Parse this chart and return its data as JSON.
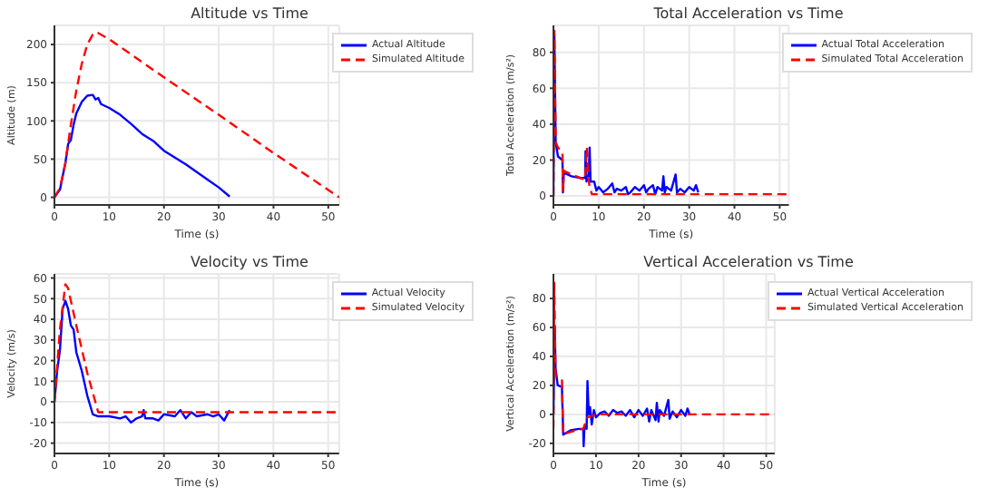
{
  "chart_data": [
    {
      "type": "line",
      "title": "Altitude vs Time",
      "xlabel": "Time (s)",
      "ylabel": "Altitude (m)",
      "xlim": [
        0,
        52
      ],
      "xticks": [
        0,
        10,
        20,
        30,
        40,
        50
      ],
      "ylim": [
        -10,
        225
      ],
      "yticks": [
        0,
        50,
        100,
        150,
        200
      ],
      "grid": true,
      "legend": "top right",
      "series": [
        {
          "name": "Actual Altitude",
          "color": "#0000ff",
          "line_style": "solid",
          "x": [
            0,
            1,
            2,
            2.5,
            3,
            3.5,
            4,
            5,
            6,
            7,
            7.5,
            8,
            8.5,
            10,
            12,
            14,
            16,
            18,
            20,
            22,
            24,
            26,
            28,
            30,
            32
          ],
          "values": [
            0,
            10,
            45,
            70,
            75,
            95,
            110,
            125,
            133,
            134,
            128,
            130,
            122,
            117,
            108,
            96,
            83,
            74,
            61,
            52,
            43,
            33,
            23,
            13,
            1
          ]
        },
        {
          "name": "Simulated Altitude",
          "color": "#ff0000",
          "line_style": "dashed",
          "x": [
            0,
            1,
            2,
            3,
            4,
            5,
            6,
            7,
            7.5,
            8,
            10,
            20,
            30,
            40,
            52
          ],
          "values": [
            0,
            12,
            45,
            95,
            140,
            175,
            200,
            213,
            216,
            215,
            207,
            157,
            108,
            58,
            0
          ]
        }
      ]
    },
    {
      "type": "line",
      "title": "Total Acceleration vs Time",
      "xlabel": "Time (s)",
      "ylabel": "Total Acceleration (m/s²)",
      "xlim": [
        0,
        52
      ],
      "xticks": [
        0,
        10,
        20,
        30,
        40,
        50
      ],
      "ylim": [
        -5,
        95
      ],
      "yticks": [
        0,
        20,
        40,
        60,
        80
      ],
      "grid": true,
      "legend": "top right",
      "series": [
        {
          "name": "Actual Total Acceleration",
          "color": "#0000ff",
          "line_style": "solid",
          "x": [
            0,
            0.2,
            0.5,
            1,
            2,
            2.1,
            2.3,
            4,
            6,
            7,
            7.1,
            7.3,
            7.8,
            8,
            8.2,
            9,
            9.5,
            10,
            11,
            12,
            13,
            13.5,
            14,
            15,
            16,
            16.5,
            17,
            18,
            19,
            20,
            20.5,
            21,
            22,
            22.5,
            23,
            24,
            24.3,
            24.6,
            25,
            26,
            27,
            27.3,
            28,
            29,
            30,
            31,
            31.5,
            32
          ],
          "values": [
            0,
            90,
            30,
            22,
            20,
            2,
            13,
            11,
            10,
            10,
            25,
            8,
            12,
            27,
            8,
            8,
            3,
            5,
            2,
            4,
            7,
            2,
            4,
            3,
            5,
            1,
            2,
            5,
            3,
            6,
            2,
            4,
            6,
            1,
            5,
            3,
            11,
            2,
            5,
            3,
            12,
            2,
            4,
            2,
            5,
            3,
            6,
            2
          ]
        },
        {
          "name": "Simulated Total Acceleration",
          "color": "#ff0000",
          "line_style": "dashed",
          "x": [
            0,
            0.2,
            0.5,
            1,
            2,
            2.1,
            2.3,
            4,
            6,
            7,
            7.4,
            7.7,
            8,
            8.5,
            10,
            20,
            30,
            40,
            50,
            51,
            52
          ],
          "values": [
            0,
            92,
            30,
            27,
            24,
            2,
            14,
            12,
            10,
            9,
            27,
            10,
            5,
            1,
            1,
            1,
            1,
            1,
            1,
            1,
            1
          ]
        }
      ]
    },
    {
      "type": "line",
      "title": "Velocity vs Time",
      "xlabel": "Time (s)",
      "ylabel": "Velocity (m/s)",
      "xlim": [
        0,
        52
      ],
      "xticks": [
        0,
        10,
        20,
        30,
        40,
        50
      ],
      "ylim": [
        -25,
        62
      ],
      "yticks": [
        -20,
        -10,
        0,
        10,
        20,
        30,
        40,
        50,
        60
      ],
      "grid": true,
      "legend": "top right",
      "series": [
        {
          "name": "Actual Velocity",
          "color": "#0000ff",
          "line_style": "solid",
          "x": [
            0,
            0.5,
            1,
            1.5,
            2,
            2.5,
            3,
            3.5,
            4,
            5,
            6,
            7,
            8,
            10,
            12,
            13,
            14,
            15,
            16,
            16.3,
            16.6,
            18,
            19,
            20,
            22,
            23,
            24,
            25,
            26,
            28,
            29,
            30,
            31,
            32
          ],
          "values": [
            0,
            15,
            25,
            45,
            49,
            45,
            37,
            35,
            24,
            15,
            3,
            -6,
            -7,
            -7,
            -8,
            -7,
            -10,
            -8,
            -7,
            -4,
            -8,
            -8,
            -9,
            -6,
            -7,
            -4,
            -8,
            -5,
            -7,
            -6,
            -7,
            -6,
            -9,
            -4
          ]
        },
        {
          "name": "Simulated Velocity",
          "color": "#ff0000",
          "line_style": "dashed",
          "x": [
            0,
            1,
            2,
            2.5,
            4,
            6,
            8,
            52
          ],
          "values": [
            0,
            35,
            57,
            55,
            37,
            14,
            -5,
            -5
          ]
        }
      ]
    },
    {
      "type": "line",
      "title": "Vertical Acceleration vs Time",
      "xlabel": "Time (s)",
      "ylabel": "Vertical Acceleration (m/s²)",
      "xlim": [
        0,
        52
      ],
      "xticks": [
        0,
        10,
        20,
        30,
        40,
        50
      ],
      "ylim": [
        -27,
        97
      ],
      "yticks": [
        -20,
        0,
        20,
        40,
        60,
        80
      ],
      "grid": true,
      "legend": "top right",
      "series": [
        {
          "name": "Actual Vertical Acceleration",
          "color": "#0000ff",
          "line_style": "solid",
          "x": [
            0,
            0.3,
            0.5,
            1,
            2,
            2.3,
            4,
            6,
            7,
            7.1,
            7.3,
            7.8,
            8,
            8.3,
            8.6,
            9,
            9.5,
            10,
            11,
            12,
            13,
            14,
            15,
            16,
            17,
            18,
            19,
            20,
            21,
            22,
            22.5,
            23,
            24,
            24.3,
            24.7,
            25,
            26,
            27,
            27.3,
            28,
            29,
            30,
            31,
            31.5,
            32
          ],
          "values": [
            0,
            60,
            32,
            20,
            19,
            -14,
            -11,
            -10,
            -10,
            -22,
            -8,
            -10,
            23,
            0,
            5,
            -7,
            3,
            -2,
            1,
            2,
            -1,
            3,
            1,
            2,
            -1,
            3,
            -2,
            3,
            -1,
            4,
            -5,
            3,
            -4,
            8,
            -5,
            3,
            -1,
            10,
            -3,
            2,
            -2,
            3,
            -1,
            4,
            0
          ]
        },
        {
          "name": "Simulated Vertical Acceleration",
          "color": "#ff0000",
          "line_style": "dashed",
          "x": [
            0,
            0.2,
            0.5,
            1,
            2,
            2.3,
            4,
            7,
            8,
            10,
            52
          ],
          "values": [
            -10,
            91,
            27,
            26,
            24,
            -14,
            -12,
            -10,
            -2,
            0,
            0
          ]
        }
      ]
    }
  ]
}
